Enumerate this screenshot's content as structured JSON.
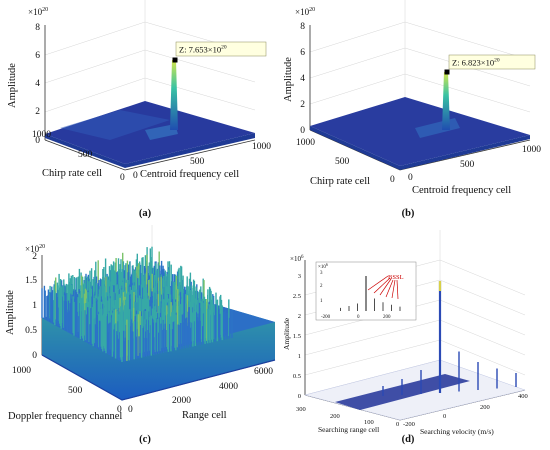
{
  "figure": {
    "panels": [
      {
        "caption": "(a)",
        "z_scale": "×10",
        "z_exp": "20",
        "zlabel": "Amplitude",
        "xlabel": "Chirp rate cell",
        "ylabel": "Centroid frequency cell",
        "datatip": "Z: 7.653×10",
        "datatip_exp": "20",
        "z_ticks": [
          "0",
          "2",
          "4",
          "6",
          "8"
        ],
        "x_ticks": [
          "1000",
          "500",
          "0"
        ],
        "y_ticks": [
          "0",
          "500",
          "1000"
        ]
      },
      {
        "caption": "(b)",
        "z_scale": "×10",
        "z_exp": "20",
        "zlabel": "Amplitude",
        "xlabel": "Chirp rate cell",
        "ylabel": "Centroid frequency cell",
        "datatip": "Z: 6.823×10",
        "datatip_exp": "20",
        "z_ticks": [
          "0",
          "2",
          "4",
          "6",
          "8"
        ],
        "x_ticks": [
          "1000",
          "500",
          "0"
        ],
        "y_ticks": [
          "0",
          "500",
          "1000"
        ]
      },
      {
        "caption": "(c)",
        "z_scale": "×10",
        "z_exp": "20",
        "zlabel": "Amplitude",
        "xlabel": "Doppler frequency channel",
        "ylabel": "Range cell",
        "z_ticks": [
          "0",
          "0.5",
          "1",
          "1.5",
          "2"
        ],
        "x_ticks": [
          "1000",
          "500",
          "0"
        ],
        "y_ticks": [
          "0",
          "2000",
          "4000",
          "6000"
        ]
      },
      {
        "caption": "(d)",
        "z_scale": "×10",
        "z_exp": "6",
        "zlabel": "Amplitude",
        "xlabel": "Searching range cell",
        "ylabel": "Searching velocity (m/s)",
        "z_ticks": [
          "0",
          "0.5",
          "1",
          "1.5",
          "2",
          "2.5",
          "3"
        ],
        "x_ticks": [
          "300",
          "200",
          "100",
          "0"
        ],
        "y_ticks": [
          "-200",
          "0",
          "200",
          "400"
        ],
        "inset": {
          "z_scale": "×10",
          "z_exp": "6",
          "y_ticks": [
            "1",
            "2",
            "3"
          ],
          "x_ticks": [
            "-200",
            "0",
            "200"
          ],
          "annotation": "BSSL"
        }
      }
    ]
  },
  "chart_data": [
    {
      "type": "surface",
      "title": "(a)",
      "xlabel": "Chirp rate cell",
      "ylabel": "Centroid frequency cell",
      "zlabel": "Amplitude",
      "z_multiplier": "1e20",
      "xlim": [
        0,
        1000
      ],
      "ylim": [
        0,
        1000
      ],
      "zlim": [
        0,
        8
      ],
      "peak": {
        "z": 7.653
      },
      "noise_floor": 0.3
    },
    {
      "type": "surface",
      "title": "(b)",
      "xlabel": "Chirp rate cell",
      "ylabel": "Centroid frequency cell",
      "zlabel": "Amplitude",
      "z_multiplier": "1e20",
      "xlim": [
        0,
        1000
      ],
      "ylim": [
        0,
        1000
      ],
      "zlim": [
        0,
        8
      ],
      "peak": {
        "z": 6.823
      },
      "noise_floor": 0.1
    },
    {
      "type": "surface",
      "title": "(c)",
      "xlabel": "Doppler frequency channel",
      "ylabel": "Range cell",
      "zlabel": "Amplitude",
      "z_multiplier": "1e20",
      "xlim": [
        0,
        1000
      ],
      "ylim": [
        0,
        6000
      ],
      "zlim": [
        0,
        2
      ],
      "typical_level": 1.1,
      "max_level": 1.9
    },
    {
      "type": "surface",
      "title": "(d)",
      "xlabel": "Searching range cell",
      "ylabel": "Searching velocity (m/s)",
      "zlabel": "Amplitude",
      "z_multiplier": "1e6",
      "xlim": [
        0,
        300
      ],
      "ylim": [
        -200,
        400
      ],
      "zlim": [
        0,
        3
      ],
      "main_peak": 2.8,
      "sidelobes": [
        {
          "velocity": -150,
          "z": 0.25
        },
        {
          "velocity": -100,
          "z": 0.4
        },
        {
          "velocity": -50,
          "z": 0.6
        },
        {
          "velocity": 50,
          "z": 1.0
        },
        {
          "velocity": 100,
          "z": 0.7
        },
        {
          "velocity": 150,
          "z": 0.5
        },
        {
          "velocity": 200,
          "z": 0.35
        }
      ],
      "annotation": "BSSL"
    }
  ]
}
